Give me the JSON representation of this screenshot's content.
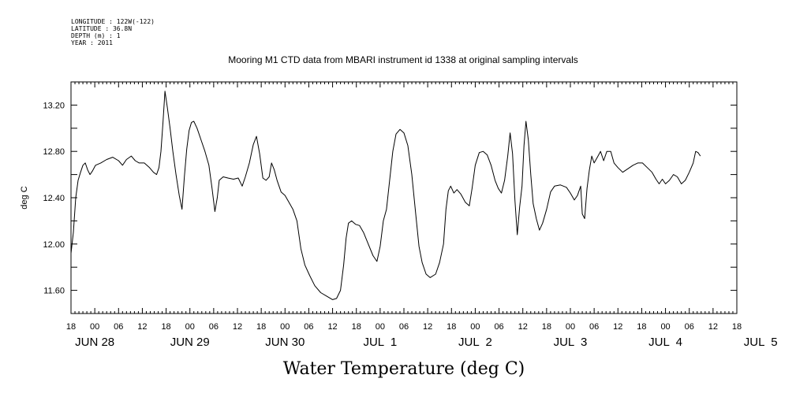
{
  "header": {
    "longitude": "LONGITUDE : 122W(-122)",
    "latitude": "LATITUDE : 36.8N",
    "depth": "DEPTH (m) : 1",
    "year": "YEAR : 2011"
  },
  "chart_data": {
    "type": "line",
    "title": "Mooring M1 CTD data from MBARI instrument id 1338 at original sampling intervals",
    "xlabel": "Water Temperature (deg C)",
    "ylabel": "deg C",
    "ylim": [
      11.4,
      13.4
    ],
    "yticks": [
      "11.60",
      "12.00",
      "12.40",
      "12.80",
      "13.20"
    ],
    "ytick_values": [
      11.6,
      12.0,
      12.4,
      12.8,
      13.2
    ],
    "xlim": [
      0,
      168
    ],
    "hour_ticks": [
      "18",
      "00",
      "06",
      "12",
      "18",
      "00",
      "06",
      "12",
      "18",
      "00",
      "06",
      "12",
      "18",
      "00",
      "06",
      "12",
      "18",
      "00",
      "06",
      "12",
      "18",
      "00",
      "06",
      "12",
      "18",
      "00",
      "06",
      "12",
      "18"
    ],
    "hour_tick_values": [
      0,
      6,
      12,
      18,
      24,
      30,
      36,
      42,
      48,
      54,
      60,
      66,
      72,
      78,
      84,
      90,
      96,
      102,
      108,
      114,
      120,
      126,
      132,
      138,
      144,
      150,
      156,
      162,
      168
    ],
    "date_labels": [
      {
        "text": "JUN 28",
        "x": 6
      },
      {
        "text": "JUN 29",
        "x": 30
      },
      {
        "text": "JUN 30",
        "x": 54
      },
      {
        "text": "JUL  1",
        "x": 78
      },
      {
        "text": "JUL  2",
        "x": 102
      },
      {
        "text": "JUL  3",
        "x": 126
      },
      {
        "text": "JUL  4",
        "x": 150
      },
      {
        "text": "JUL  5",
        "x": 174
      }
    ],
    "grid": false,
    "series": [
      {
        "values": [
          [
            0,
            11.92
          ],
          [
            0.6,
            12.1
          ],
          [
            1.2,
            12.4
          ],
          [
            1.8,
            12.55
          ],
          [
            2.4,
            12.62
          ],
          [
            3,
            12.68
          ],
          [
            3.6,
            12.7
          ],
          [
            4.2,
            12.64
          ],
          [
            4.8,
            12.6
          ],
          [
            5.4,
            12.63
          ],
          [
            6.2,
            12.68
          ],
          [
            7.5,
            12.7
          ],
          [
            9,
            12.73
          ],
          [
            10.5,
            12.75
          ],
          [
            12,
            12.72
          ],
          [
            13,
            12.68
          ],
          [
            14,
            12.73
          ],
          [
            15.2,
            12.76
          ],
          [
            16.2,
            12.72
          ],
          [
            17.2,
            12.7
          ],
          [
            18.5,
            12.7
          ],
          [
            19.8,
            12.66
          ],
          [
            20.8,
            12.62
          ],
          [
            21.6,
            12.6
          ],
          [
            22.2,
            12.66
          ],
          [
            22.7,
            12.8
          ],
          [
            23.2,
            13.05
          ],
          [
            23.7,
            13.32
          ],
          [
            24.3,
            13.18
          ],
          [
            25,
            13.0
          ],
          [
            25.7,
            12.8
          ],
          [
            26.5,
            12.6
          ],
          [
            27.3,
            12.42
          ],
          [
            28,
            12.3
          ],
          [
            28.6,
            12.58
          ],
          [
            29.2,
            12.82
          ],
          [
            29.8,
            12.98
          ],
          [
            30.4,
            13.05
          ],
          [
            31,
            13.06
          ],
          [
            31.8,
            13.0
          ],
          [
            32.8,
            12.9
          ],
          [
            33.8,
            12.8
          ],
          [
            34.8,
            12.68
          ],
          [
            35.6,
            12.48
          ],
          [
            36.3,
            12.28
          ],
          [
            36.9,
            12.4
          ],
          [
            37.4,
            12.55
          ],
          [
            38.4,
            12.58
          ],
          [
            39.6,
            12.57
          ],
          [
            41,
            12.56
          ],
          [
            42.2,
            12.57
          ],
          [
            43.2,
            12.5
          ],
          [
            44,
            12.58
          ],
          [
            45,
            12.7
          ],
          [
            46,
            12.86
          ],
          [
            46.8,
            12.93
          ],
          [
            47.6,
            12.78
          ],
          [
            48.4,
            12.57
          ],
          [
            49.2,
            12.55
          ],
          [
            50,
            12.58
          ],
          [
            50.6,
            12.7
          ],
          [
            51.3,
            12.64
          ],
          [
            52,
            12.55
          ],
          [
            53,
            12.45
          ],
          [
            54,
            12.42
          ],
          [
            55,
            12.36
          ],
          [
            56,
            12.3
          ],
          [
            57,
            12.2
          ],
          [
            58,
            11.96
          ],
          [
            59,
            11.82
          ],
          [
            60.2,
            11.73
          ],
          [
            61.5,
            11.64
          ],
          [
            63,
            11.58
          ],
          [
            64.5,
            11.55
          ],
          [
            66,
            11.52
          ],
          [
            67,
            11.53
          ],
          [
            68,
            11.6
          ],
          [
            68.8,
            11.82
          ],
          [
            69.4,
            12.05
          ],
          [
            70,
            12.18
          ],
          [
            70.8,
            12.2
          ],
          [
            71.8,
            12.17
          ],
          [
            72.8,
            12.16
          ],
          [
            73.8,
            12.1
          ],
          [
            75,
            12.0
          ],
          [
            76.2,
            11.9
          ],
          [
            77.2,
            11.85
          ],
          [
            78,
            11.98
          ],
          [
            78.8,
            12.2
          ],
          [
            79.6,
            12.3
          ],
          [
            80.4,
            12.55
          ],
          [
            81.2,
            12.8
          ],
          [
            82,
            12.95
          ],
          [
            83,
            12.99
          ],
          [
            84,
            12.96
          ],
          [
            85,
            12.85
          ],
          [
            86,
            12.6
          ],
          [
            87,
            12.25
          ],
          [
            87.8,
            11.98
          ],
          [
            88.6,
            11.84
          ],
          [
            89.6,
            11.74
          ],
          [
            90.6,
            11.71
          ],
          [
            92,
            11.74
          ],
          [
            93,
            11.84
          ],
          [
            94,
            12.0
          ],
          [
            94.6,
            12.3
          ],
          [
            95.2,
            12.46
          ],
          [
            95.8,
            12.5
          ],
          [
            96.6,
            12.44
          ],
          [
            97.4,
            12.47
          ],
          [
            98.4,
            12.43
          ],
          [
            99.5,
            12.36
          ],
          [
            100.5,
            12.33
          ],
          [
            101.2,
            12.48
          ],
          [
            102,
            12.68
          ],
          [
            103,
            12.79
          ],
          [
            104,
            12.8
          ],
          [
            105,
            12.77
          ],
          [
            106,
            12.68
          ],
          [
            107,
            12.55
          ],
          [
            107.8,
            12.48
          ],
          [
            108.6,
            12.44
          ],
          [
            109.4,
            12.55
          ],
          [
            110.2,
            12.76
          ],
          [
            110.8,
            12.96
          ],
          [
            111.4,
            12.78
          ],
          [
            112,
            12.38
          ],
          [
            112.6,
            12.08
          ],
          [
            113.2,
            12.32
          ],
          [
            113.8,
            12.5
          ],
          [
            114.3,
            12.85
          ],
          [
            114.8,
            13.06
          ],
          [
            115.4,
            12.9
          ],
          [
            116,
            12.6
          ],
          [
            116.6,
            12.35
          ],
          [
            117.4,
            12.22
          ],
          [
            118.2,
            12.12
          ],
          [
            119,
            12.18
          ],
          [
            120,
            12.3
          ],
          [
            121,
            12.45
          ],
          [
            122,
            12.5
          ],
          [
            123.5,
            12.51
          ],
          [
            125,
            12.49
          ],
          [
            126,
            12.44
          ],
          [
            127,
            12.38
          ],
          [
            127.8,
            12.42
          ],
          [
            128.6,
            12.5
          ],
          [
            129,
            12.26
          ],
          [
            129.6,
            12.22
          ],
          [
            130.2,
            12.48
          ],
          [
            130.8,
            12.64
          ],
          [
            131.4,
            12.76
          ],
          [
            132,
            12.7
          ],
          [
            132.8,
            12.75
          ],
          [
            133.6,
            12.8
          ],
          [
            134.4,
            12.72
          ],
          [
            135.2,
            12.8
          ],
          [
            136.2,
            12.8
          ],
          [
            137,
            12.7
          ],
          [
            138,
            12.66
          ],
          [
            139.2,
            12.62
          ],
          [
            140.5,
            12.65
          ],
          [
            141.8,
            12.68
          ],
          [
            143,
            12.7
          ],
          [
            144.2,
            12.7
          ],
          [
            145.4,
            12.66
          ],
          [
            146.6,
            12.62
          ],
          [
            147.6,
            12.56
          ],
          [
            148.4,
            12.52
          ],
          [
            149.2,
            12.56
          ],
          [
            150,
            12.52
          ],
          [
            151,
            12.55
          ],
          [
            152,
            12.6
          ],
          [
            153,
            12.58
          ],
          [
            154,
            12.52
          ],
          [
            155,
            12.55
          ],
          [
            156,
            12.62
          ],
          [
            157,
            12.7
          ],
          [
            157.6,
            12.8
          ],
          [
            158.2,
            12.79
          ],
          [
            158.8,
            12.76
          ]
        ]
      }
    ]
  }
}
